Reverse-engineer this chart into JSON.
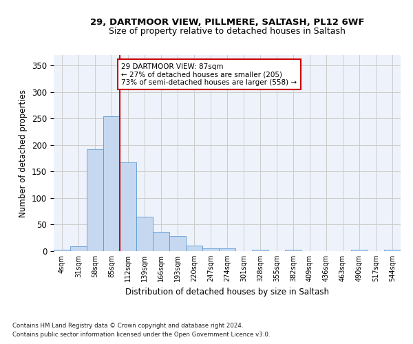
{
  "title1": "29, DARTMOOR VIEW, PILLMERE, SALTASH, PL12 6WF",
  "title2": "Size of property relative to detached houses in Saltash",
  "xlabel": "Distribution of detached houses by size in Saltash",
  "ylabel": "Number of detached properties",
  "bin_labels": [
    "4sqm",
    "31sqm",
    "58sqm",
    "85sqm",
    "112sqm",
    "139sqm",
    "166sqm",
    "193sqm",
    "220sqm",
    "247sqm",
    "274sqm",
    "301sqm",
    "328sqm",
    "355sqm",
    "382sqm",
    "409sqm",
    "436sqm",
    "463sqm",
    "490sqm",
    "517sqm",
    "544sqm"
  ],
  "bar_heights": [
    2,
    9,
    192,
    255,
    168,
    65,
    37,
    28,
    11,
    5,
    5,
    0,
    3,
    0,
    3,
    0,
    0,
    0,
    2,
    0,
    2
  ],
  "bar_color": "#c5d8f0",
  "bar_edge_color": "#5b9bd5",
  "grid_color": "#cccccc",
  "bg_color": "#eef2fa",
  "vline_x": 3.5,
  "vline_color": "#cc0000",
  "annotation_text": "29 DARTMOOR VIEW: 87sqm\n← 27% of detached houses are smaller (205)\n73% of semi-detached houses are larger (558) →",
  "annotation_box_color": "#ffffff",
  "annotation_box_edge": "#cc0000",
  "footnote1": "Contains HM Land Registry data © Crown copyright and database right 2024.",
  "footnote2": "Contains public sector information licensed under the Open Government Licence v3.0.",
  "ylim": [
    0,
    370
  ],
  "yticks": [
    0,
    50,
    100,
    150,
    200,
    250,
    300,
    350
  ]
}
